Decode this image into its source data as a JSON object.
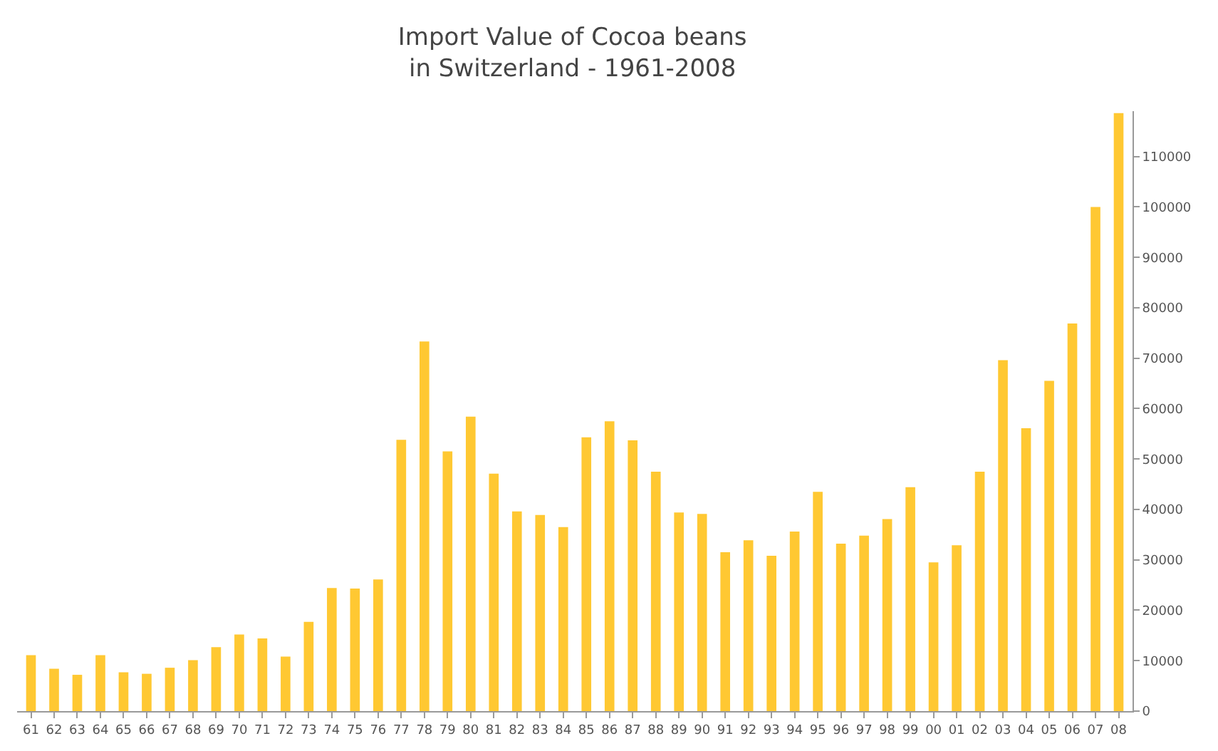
{
  "chart_data": {
    "type": "bar",
    "title": "Import Value of Cocoa beans\nin Switzerland - 1961-2008",
    "categories": [
      "61",
      "62",
      "63",
      "64",
      "65",
      "66",
      "67",
      "68",
      "69",
      "70",
      "71",
      "72",
      "73",
      "74",
      "75",
      "76",
      "77",
      "78",
      "79",
      "80",
      "81",
      "82",
      "83",
      "84",
      "85",
      "86",
      "87",
      "88",
      "89",
      "90",
      "91",
      "92",
      "93",
      "94",
      "95",
      "96",
      "97",
      "98",
      "99",
      "00",
      "01",
      "02",
      "03",
      "04",
      "05",
      "06",
      "07",
      "08"
    ],
    "values": [
      11100,
      8400,
      7200,
      11100,
      7700,
      7400,
      8600,
      10100,
      12700,
      15200,
      14400,
      10800,
      17700,
      24400,
      24300,
      26100,
      53800,
      73300,
      51500,
      58400,
      47100,
      39600,
      38900,
      36500,
      54300,
      57500,
      53700,
      47500,
      39400,
      39100,
      31500,
      33900,
      30800,
      35600,
      43500,
      33200,
      34800,
      38100,
      44400,
      29500,
      32900,
      47500,
      69600,
      56100,
      65500,
      76900,
      100000,
      118600
    ],
    "color": "#ffc832",
    "ylim": [
      0,
      119000
    ],
    "yticks": [
      0,
      10000,
      20000,
      30000,
      40000,
      50000,
      60000,
      70000,
      80000,
      90000,
      100000,
      110000
    ],
    "grid": false,
    "legend": false
  }
}
